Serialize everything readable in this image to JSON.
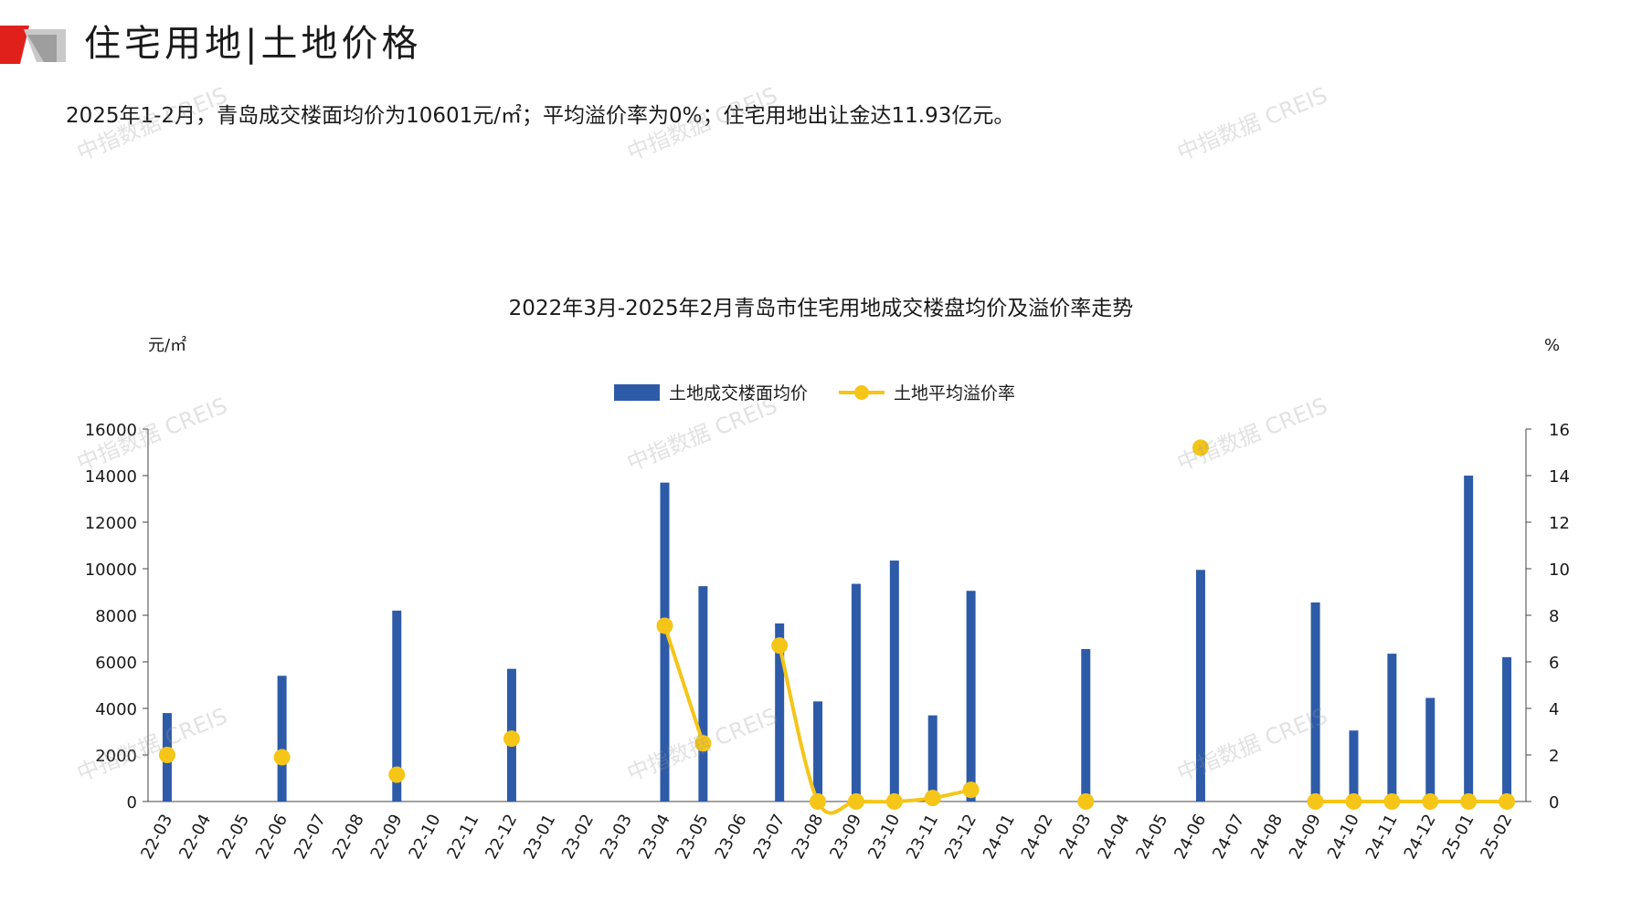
{
  "header": {
    "title": "住宅用地|土地价格",
    "summary": "2025年1-2月，青岛成交楼面均价为10601元/㎡；平均溢价率为0%；住宅用地出让金达11.93亿元。"
  },
  "watermark": {
    "text": "中指数据 CREIS"
  },
  "colors": {
    "bar": "#2E5BA8",
    "line": "#F5C518",
    "brand_red": "#E0201B",
    "brand_grey": "#B9B9B9"
  },
  "chart_data": {
    "type": "bar",
    "title": "2022年3月-2025年2月青岛市住宅用地成交楼盘均价及溢价率走势",
    "y_left_unit": "元/㎡",
    "y_right_unit": "%",
    "y_left_ticks": [
      "0",
      "2000",
      "4000",
      "6000",
      "8000",
      "10000",
      "12000",
      "14000",
      "16000"
    ],
    "y_right_ticks": [
      "0",
      "2",
      "4",
      "6",
      "8",
      "10",
      "12",
      "14",
      "16"
    ],
    "ylim_left": [
      0,
      16000
    ],
    "ylim_right": [
      0,
      16
    ],
    "legend_position": "top-center",
    "categories": [
      "22-03",
      "22-04",
      "22-05",
      "22-06",
      "22-07",
      "22-08",
      "22-09",
      "22-10",
      "22-11",
      "22-12",
      "23-01",
      "23-02",
      "23-03",
      "23-04",
      "23-05",
      "23-06",
      "23-07",
      "23-08",
      "23-09",
      "23-10",
      "23-11",
      "23-12",
      "24-01",
      "24-02",
      "24-03",
      "24-04",
      "24-05",
      "24-06",
      "24-07",
      "24-08",
      "24-09",
      "24-10",
      "24-11",
      "24-12",
      "25-01",
      "25-02"
    ],
    "series": [
      {
        "name": "土地成交楼面均价",
        "type": "bar",
        "axis": "left",
        "values": [
          3800,
          null,
          null,
          5400,
          null,
          null,
          8200,
          null,
          null,
          5700,
          null,
          null,
          null,
          13700,
          9250,
          null,
          7650,
          4300,
          9350,
          10350,
          3700,
          9050,
          null,
          null,
          6550,
          null,
          null,
          9950,
          null,
          null,
          8550,
          3050,
          6350,
          4450,
          14000,
          6200
        ]
      },
      {
        "name": "土地平均溢价率",
        "type": "line",
        "axis": "right",
        "values": [
          2.0,
          null,
          null,
          1.9,
          null,
          null,
          1.15,
          null,
          null,
          2.7,
          null,
          null,
          null,
          7.55,
          2.5,
          null,
          6.7,
          0,
          0,
          0,
          0.15,
          0.5,
          null,
          null,
          0,
          null,
          null,
          15.2,
          null,
          null,
          0,
          0,
          0,
          0,
          0,
          0
        ]
      }
    ]
  }
}
